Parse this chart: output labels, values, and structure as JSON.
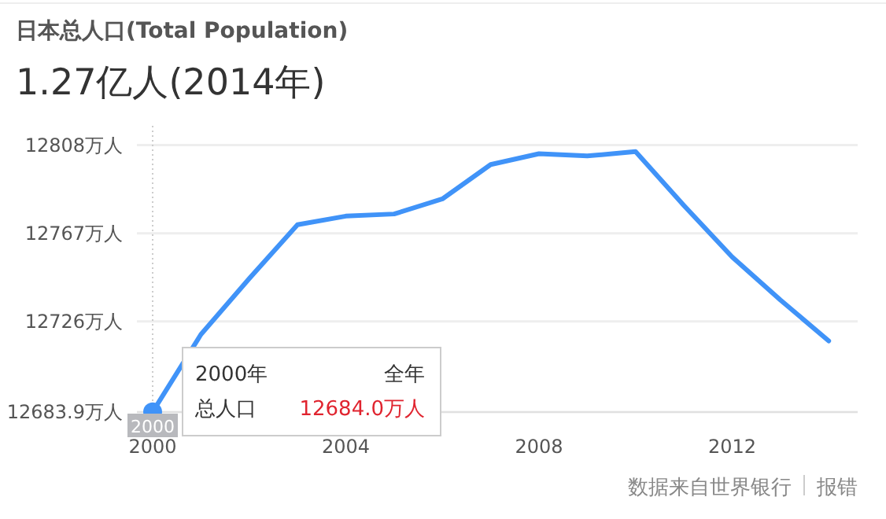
{
  "chart_data": {
    "type": "line",
    "title": "日本总人口**(Total Population)**",
    "subtitle": "1.27亿人(2014年)",
    "x": [
      2000,
      2001,
      2002,
      2003,
      2004,
      2005,
      2006,
      2007,
      2008,
      2009,
      2010,
      2011,
      2012,
      2013,
      2014
    ],
    "series": [
      {
        "color": "#4093f8",
        "values": [
          12684.0,
          12720,
          12746,
          12771,
          12775,
          12776,
          12783,
          12799,
          12804,
          12803,
          12805,
          12780,
          12756,
          12736,
          12717
        ]
      }
    ],
    "xlim": [
      2000,
      2014.6
    ],
    "xticks": [
      2000,
      2004,
      2008,
      2012
    ],
    "ylim": [
      12683.9,
      12817
    ],
    "yticks": [
      {
        "value": 12683.9,
        "label": "12683.9万人"
      },
      {
        "value": 12726,
        "label": "12726万人"
      },
      {
        "value": 12767,
        "label": "12767万人"
      },
      {
        "value": 12808,
        "label": "12808万人"
      }
    ],
    "grid": "y",
    "marker": "none",
    "line_style": "solid",
    "annotations": [
      "2000年",
      "全年",
      "总人口",
      "12684.0万人",
      "2000",
      "数据来自世界银行",
      "报错"
    ]
  }
}
